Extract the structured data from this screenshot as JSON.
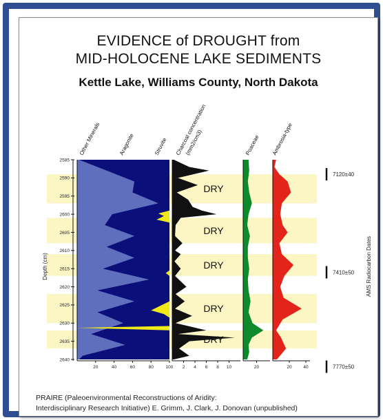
{
  "title_line1": "EVIDENCE of DROUGHT from",
  "title_line2": "MID-HOLOCENE LAKE SEDIMENTS",
  "subtitle": "Kettle Lake, Williams County, North Dakota",
  "credit_line1": "PRAIRE (Paleoenvironmental Reconstructions of Aridity:",
  "credit_line2": "Interdisciplinary Research Initiative)  E. Grimm, J. Clark, J. Donovan (unpublished)",
  "chart_data": {
    "type": "area",
    "y_axis_label": "Depth (cm)",
    "y_ticks": [
      "2585",
      "2590",
      "2595",
      "2600",
      "2605",
      "2610",
      "2615",
      "2620",
      "2625",
      "2630",
      "2635",
      "2640"
    ],
    "depth_range": [
      2585,
      2640
    ],
    "column_labels": [
      "Other Minerals",
      "Aragonite",
      "Struvite",
      "Charcoal concentration",
      "(mm2/cm3)",
      "Poaceae",
      "Ambrosia-type"
    ],
    "panel_x_ticks": {
      "minerals": [
        "20",
        "40",
        "60",
        "80",
        "100"
      ],
      "charcoal": [
        "2",
        "4",
        "6",
        "8",
        "10"
      ],
      "poaceae": [
        "20"
      ],
      "ambrosia": [
        "20",
        "40"
      ]
    },
    "dry_bands": [
      {
        "label": "DRY",
        "from": 2589,
        "to": 2597
      },
      {
        "label": "DRY",
        "from": 2601,
        "to": 2608
      },
      {
        "label": "DRY",
        "from": 2611,
        "to": 2617
      },
      {
        "label": "DRY",
        "from": 2622,
        "to": 2630
      },
      {
        "label": "DRY",
        "from": 2632,
        "to": 2637
      }
    ],
    "radiocarbon_axis_label": "AMS Radiocarbon Dates",
    "radiocarbon_dates": [
      {
        "label": "7120±40",
        "depth": 2589
      },
      {
        "label": "7410±50",
        "depth": 2616
      },
      {
        "label": "7770±50",
        "depth": 2642
      }
    ],
    "series": [
      {
        "name": "Aragonite",
        "panel": "minerals",
        "color": "#5f6fbd",
        "depth": [
          2585,
          2588,
          2591,
          2594,
          2597,
          2600,
          2603,
          2606,
          2609,
          2612,
          2615,
          2618,
          2621,
          2624,
          2627,
          2630,
          2633,
          2636,
          2639,
          2640
        ],
        "values": [
          2,
          32,
          62,
          60,
          88,
          38,
          30,
          62,
          32,
          62,
          28,
          78,
          22,
          62,
          22,
          50,
          15,
          52,
          6,
          2
        ]
      },
      {
        "name": "Struvite",
        "panel": "minerals",
        "color": "#f2ea18",
        "depth": [
          2585,
          2599,
          2599.8,
          2600.5,
          2601.5,
          2602.3,
          2615.5,
          2616.2,
          2617,
          2624,
          2625.5,
          2626.5,
          2627.5,
          2628.5,
          2630.8,
          2631.3,
          2632,
          2640
        ],
        "values": [
          100,
          100,
          88,
          94,
          86,
          100,
          100,
          96,
          100,
          100,
          88,
          80,
          94,
          100,
          100,
          0,
          100,
          100
        ]
      },
      {
        "name": "Charcoal concentration",
        "panel": "charcoal",
        "color": "#111111",
        "depth": [
          2585,
          2587,
          2588,
          2590,
          2592,
          2594,
          2596,
          2598,
          2599,
          2600,
          2601,
          2603,
          2606,
          2608,
          2610,
          2611,
          2613,
          2615,
          2617,
          2620,
          2622,
          2624,
          2626,
          2628,
          2630,
          2632,
          2633,
          2634,
          2635,
          2637,
          2639,
          2640
        ],
        "values": [
          0.3,
          3.0,
          6.5,
          1.0,
          4.5,
          0.8,
          2.8,
          3.6,
          5.2,
          7.8,
          1.5,
          0.6,
          0.5,
          1.8,
          0.5,
          1.5,
          0.4,
          1.5,
          0.5,
          2.5,
          0.6,
          2.2,
          0.5,
          3.5,
          0.6,
          6.0,
          1.0,
          11.0,
          3.0,
          1.2,
          3.0,
          0.3
        ]
      },
      {
        "name": "Poaceae",
        "panel": "poaceae",
        "color": "#0e8a2c",
        "depth": [
          2585,
          2588,
          2591,
          2594,
          2597,
          2600,
          2603,
          2606,
          2609,
          2612,
          2615,
          2618,
          2621,
          2624,
          2627,
          2630,
          2632,
          2634,
          2636,
          2638,
          2640
        ],
        "values": [
          8,
          9,
          7,
          9,
          13,
          8,
          6,
          10,
          7,
          7,
          9,
          7,
          8,
          11,
          8,
          14,
          30,
          13,
          8,
          9,
          6
        ]
      },
      {
        "name": "Ambrosia-type",
        "panel": "ambrosia",
        "color": "#e3241b",
        "depth": [
          2585,
          2587,
          2589,
          2591,
          2594,
          2597,
          2600,
          2603,
          2605,
          2608,
          2611,
          2614,
          2617,
          2620,
          2623,
          2626,
          2629,
          2632,
          2634,
          2637,
          2640
        ],
        "values": [
          4,
          2,
          8,
          18,
          22,
          11,
          9,
          12,
          18,
          8,
          11,
          25,
          14,
          9,
          13,
          35,
          12,
          4,
          10,
          16,
          5
        ]
      }
    ]
  }
}
